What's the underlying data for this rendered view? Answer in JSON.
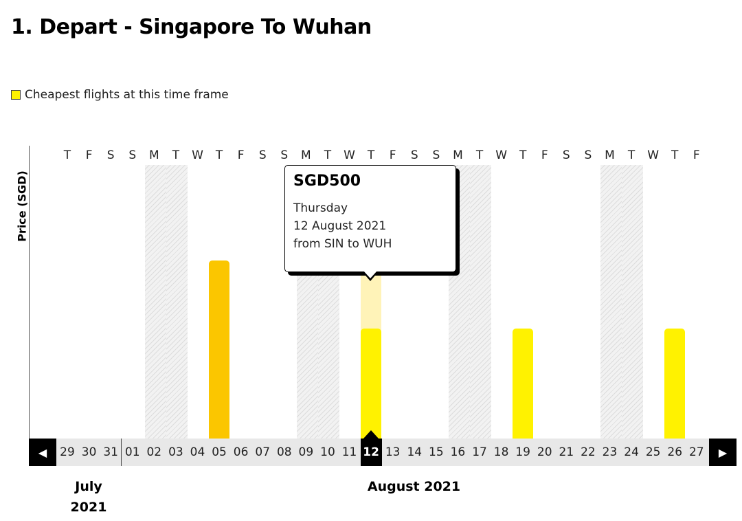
{
  "page": {
    "title": "1. Depart - Singapore To Wuhan"
  },
  "legend": {
    "label": "Cheapest flights at this time frame",
    "swatch_color": "#fff200"
  },
  "chart": {
    "y_axis_label": "Price (SGD)",
    "weekdays": [
      "T",
      "F",
      "S",
      "S",
      "M",
      "T",
      "W",
      "T",
      "F",
      "S",
      "S",
      "M",
      "T",
      "W",
      "T",
      "F",
      "S",
      "S",
      "M",
      "T",
      "W",
      "T",
      "F",
      "S",
      "S",
      "M",
      "T",
      "W",
      "T",
      "F"
    ],
    "days": [
      "29",
      "30",
      "31",
      "01",
      "02",
      "03",
      "04",
      "05",
      "06",
      "07",
      "08",
      "09",
      "10",
      "11",
      "12",
      "13",
      "14",
      "15",
      "16",
      "17",
      "18",
      "19",
      "20",
      "21",
      "22",
      "23",
      "24",
      "25",
      "26",
      "27"
    ],
    "selected_day": "12",
    "months": [
      {
        "name": "July",
        "year": "2021"
      },
      {
        "name": "August 2021"
      }
    ],
    "nav": {
      "prev_icon": "arrow-left-icon",
      "next_icon": "arrow-right-icon"
    },
    "colors": {
      "cheapest": "#fff200",
      "higher": "#fbc600",
      "selected_highlight": "#fff3b8"
    }
  },
  "chart_data": {
    "type": "bar",
    "categories": [
      "29",
      "30",
      "31",
      "01",
      "02",
      "03",
      "04",
      "05",
      "06",
      "07",
      "08",
      "09",
      "10",
      "11",
      "12",
      "13",
      "14",
      "15",
      "16",
      "17",
      "18",
      "19",
      "20",
      "21",
      "22",
      "23",
      "24",
      "25",
      "26",
      "27"
    ],
    "values": [
      null,
      null,
      null,
      null,
      null,
      null,
      null,
      null,
      null,
      null,
      null,
      null,
      null,
      null,
      500,
      null,
      null,
      null,
      null,
      null,
      null,
      null,
      null,
      null,
      null,
      null,
      null,
      null,
      null,
      null
    ],
    "bars": [
      {
        "day": "05",
        "relative_height": 0.81,
        "cheapest": false
      },
      {
        "day": "12",
        "value": 500,
        "relative_height": 0.5,
        "cheapest": true
      },
      {
        "day": "19",
        "relative_height": 0.5,
        "cheapest": true
      },
      {
        "day": "26",
        "relative_height": 0.5,
        "cheapest": true
      }
    ],
    "ylabel": "Price (SGD)",
    "grid": false
  },
  "tooltip": {
    "price": "SGD500",
    "day_name": "Thursday",
    "date": "12 August 2021",
    "route": "from SIN to WUH"
  }
}
